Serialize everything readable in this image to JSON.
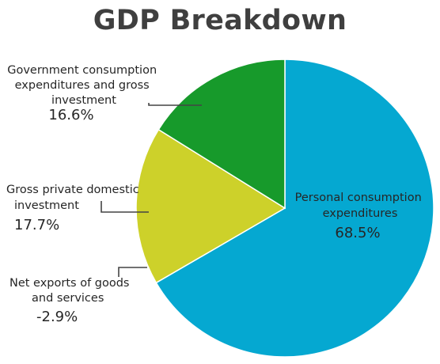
{
  "chart_data": {
    "type": "pie",
    "title": "GDP Breakdown",
    "slices": [
      {
        "label": "Personal consumption expenditures",
        "value": 68.5,
        "value_label": "68.5%",
        "color": "#05a8d1"
      },
      {
        "label": "Net exports of goods and services",
        "value": -2.9,
        "value_label": "-2.9%",
        "color": "#05a8d1"
      },
      {
        "label": "Gross private domestic investment",
        "value": 17.7,
        "value_label": "17.7%",
        "color": "#cdd12a"
      },
      {
        "label": "Government consumption expenditures and gross investment",
        "value": 16.6,
        "value_label": "16.6%",
        "color": "#179a2b"
      }
    ],
    "legend": "none"
  }
}
